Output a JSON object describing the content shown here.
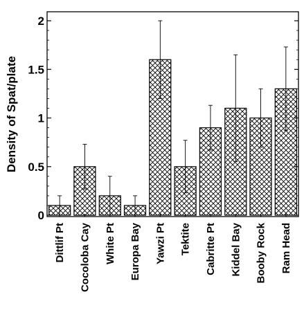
{
  "chart_data": {
    "type": "bar",
    "title": "",
    "xlabel": "",
    "ylabel": "Density of Spat/plate",
    "ylim": [
      0,
      2.1
    ],
    "yticks": [
      {
        "value": 0,
        "label": "0"
      },
      {
        "value": 0.5,
        "label": "0.5"
      },
      {
        "value": 1,
        "label": "1"
      },
      {
        "value": 1.5,
        "label": "1.5"
      },
      {
        "value": 2,
        "label": "2"
      }
    ],
    "categories": [
      "Dittlif Pt",
      "Cocoloba Cay",
      "White Pt",
      "Europa Bay",
      "Yawzi Pt",
      "Tektite",
      "Cabritte Pt",
      "Kiddel Bay",
      "Booby Rock",
      "Ram Head"
    ],
    "values": [
      0.1,
      0.5,
      0.2,
      0.1,
      1.6,
      0.5,
      0.9,
      1.1,
      1.0,
      1.3
    ],
    "error": [
      0.1,
      0.23,
      0.2,
      0.1,
      0.4,
      0.27,
      0.23,
      0.55,
      0.3,
      0.43
    ],
    "fill_pattern": "crosshatch",
    "grid": false,
    "legend": "none"
  }
}
